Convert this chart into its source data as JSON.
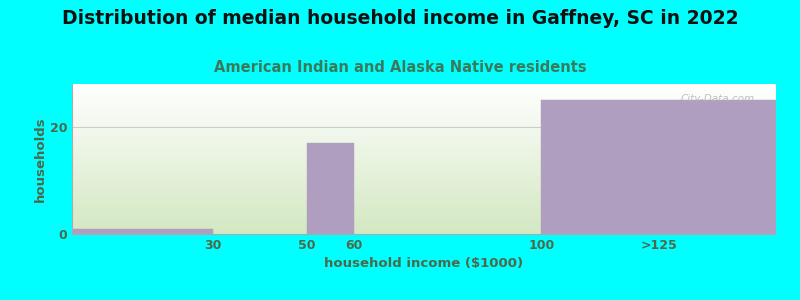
{
  "title": "Distribution of median household income in Gaffney, SC in 2022",
  "subtitle": "American Indian and Alaska Native residents",
  "xlabel": "household income ($1000)",
  "ylabel": "households",
  "bar_color": "#b09ec0",
  "background_color": "#00ffff",
  "plot_bg_top": "#ffffff",
  "plot_bg_bottom": "#d4e8c2",
  "ylim": [
    0,
    28
  ],
  "xlim": [
    0,
    150
  ],
  "title_fontsize": 13.5,
  "subtitle_fontsize": 10.5,
  "axis_label_fontsize": 9.5,
  "tick_fontsize": 9,
  "title_color": "#111111",
  "subtitle_color": "#3a7a5a",
  "axis_label_color": "#4a6a4a",
  "tick_color": "#4a6a4a",
  "watermark_text": "City-Data.com",
  "grid_color": "#cccccc",
  "xtick_positions": [
    30,
    50,
    60,
    100,
    125
  ],
  "xtick_labels": [
    "30",
    "50",
    "60",
    "100",
    ">125"
  ],
  "bar_lefts": [
    0,
    30,
    50,
    60,
    100
  ],
  "bar_rights": [
    30,
    50,
    60,
    100,
    150
  ],
  "bar_heights": [
    1,
    0,
    17,
    0,
    25
  ]
}
